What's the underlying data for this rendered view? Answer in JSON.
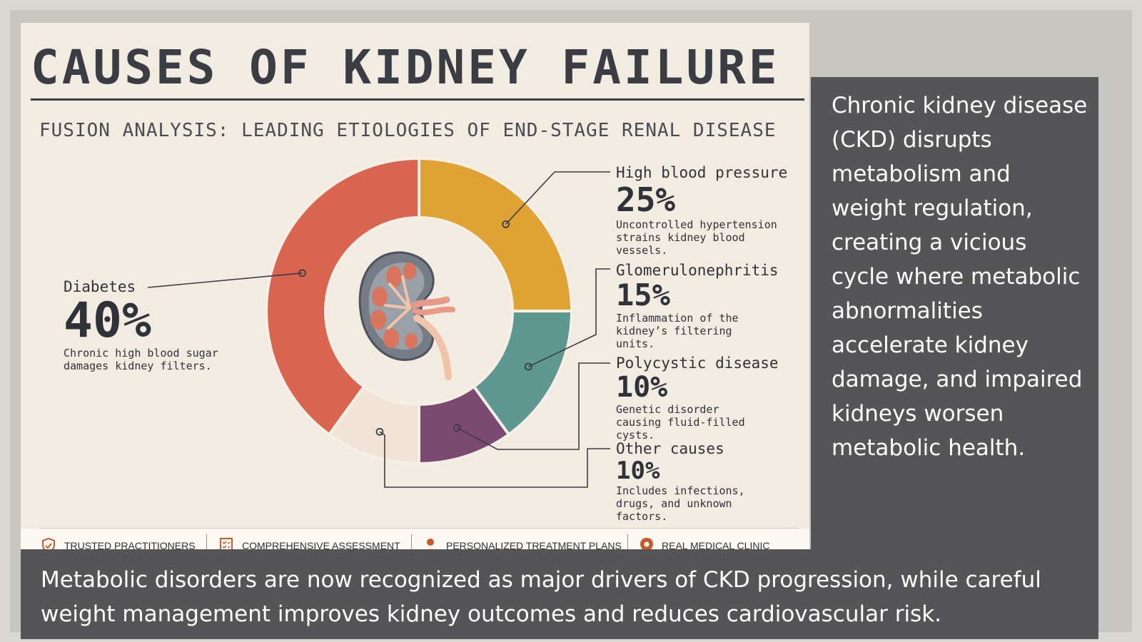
{
  "poster": {
    "title": "CAUSES OF KIDNEY FAILURE",
    "subtitle": "FUSION ANALYSIS: LEADING ETIOLOGIES OF END-STAGE RENAL DISEASE"
  },
  "chart_data": {
    "type": "pie",
    "title": "CAUSES OF KIDNEY FAILURE",
    "subtitle": "FUSION ANALYSIS: LEADING ETIOLOGIES OF END-STAGE RENAL DISEASE",
    "slices": [
      {
        "label": "High blood pressure",
        "value": 25,
        "value_label": "25%",
        "description": "Uncontrolled hypertension strains kidney blood vessels.",
        "color": "#e0a233"
      },
      {
        "label": "Glomerulonephritis",
        "value": 15,
        "value_label": "15%",
        "description": "Inflammation of the kidney’s filtering units.",
        "color": "#5f9791"
      },
      {
        "label": "Polycystic disease",
        "value": 10,
        "value_label": "10%",
        "description": "Genetic disorder causing fluid-filled cysts.",
        "color": "#7a4a73"
      },
      {
        "label": "Other causes",
        "value": 10,
        "value_label": "10%",
        "description": "Includes infections, drugs, and unknown factors.",
        "color": "#f1e4d6"
      },
      {
        "label": "Diabetes",
        "value": 40,
        "value_label": "40%",
        "description": "Chronic high blood sugar damages kidney filters.",
        "color": "#d9644f"
      }
    ]
  },
  "footer": {
    "items": [
      {
        "label": "TRUSTED PRACTITIONERS",
        "icon": "shield-check-icon"
      },
      {
        "label": "COMPREHENSIVE ASSESSMENT",
        "icon": "checklist-icon"
      },
      {
        "label": "PERSONALIZED TREATMENT PLANS",
        "icon": "person-icon"
      },
      {
        "label": "REAL MEDICAL CLINIC",
        "icon": "location-pin-icon"
      }
    ]
  },
  "side_caption": "Chronic kidney disease (CKD) disrupts metabolism and weight regulation, creating a vicious cycle where metabolic abnormalities accelerate kidney damage, and impaired kidneys worsen metabolic health.",
  "bottom_caption": "Metabolic disorders are now recognized as major drivers of CKD progression, while careful weight management improves kidney outcomes and reduces cardiovascular risk."
}
